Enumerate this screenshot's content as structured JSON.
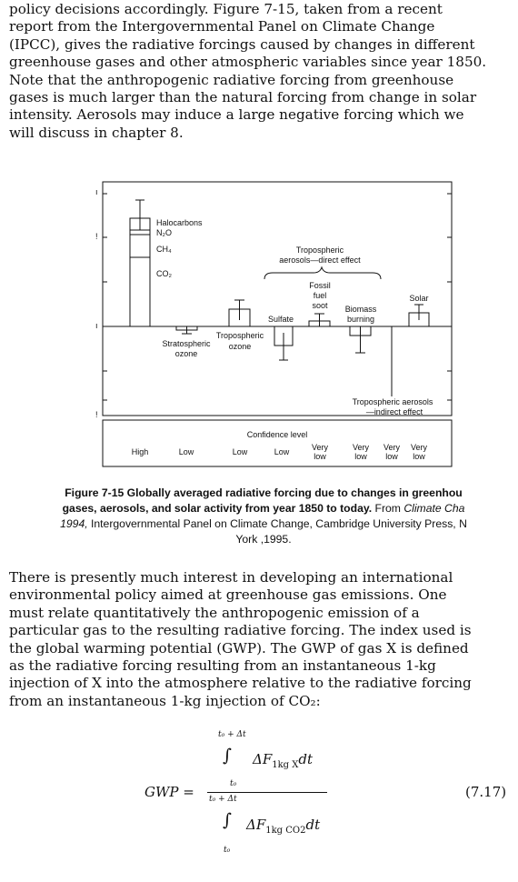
{
  "paragraph_top": [
    "policy decisions accordingly.  Figure 7-15, taken from a recent",
    "report from the Intergovernmental Panel on Climate Change",
    "(IPCC), gives the radiative forcings caused by changes in different",
    "greenhouse gases and other atmospheric variables since year 1850.",
    "Note that the anthropogenic radiative forcing from greenhouse",
    "gases is much larger than the natural forcing from change in solar",
    "intensity.  Aerosols may induce a large negative forcing which we",
    "will discuss in chapter 8."
  ],
  "figure": {
    "labels": {
      "halocarbons": "Halocarbons",
      "n2o": "N₂O",
      "ch4": "CH₄",
      "co2": "CO₂",
      "trop_direct_1": "Tropospheric",
      "trop_direct_2": "aerosols—direct effect",
      "fossil_1": "Fossil",
      "fossil_2": "fuel",
      "fossil_3": "soot",
      "sulfate": "Sulfate",
      "biomass_1": "Biomass",
      "biomass_2": "burning",
      "solar": "Solar",
      "strat_ozone_1": "Stratospheric",
      "strat_ozone_2": "ozone",
      "trop_ozone_1": "Tropospheric",
      "trop_ozone_2": "ozone",
      "trop_indirect_1": "Tropospheric aerosols",
      "trop_indirect_2": "—indirect effect",
      "confidence_level": "Confidence level"
    },
    "confidence": [
      "High",
      "Low",
      "Low",
      "Low",
      "Very low",
      "Very low",
      "Very low",
      "Very low"
    ]
  },
  "caption": {
    "bold_1": "Figure 7-15  Globally averaged radiative forcing due to changes in greenhou",
    "bold_2": "gases, aerosols, and solar activity from year 1850 to today.",
    "plain_2": " From ",
    "italic_2": "Climate Cha",
    "italic_3": "1994,",
    "plain_3": " Intergovernmental Panel on Climate Change, Cambridge University Press, N",
    "plain_4": "York ,1995."
  },
  "paragraph_bottom": [
    "There is presently much interest in developing an international",
    "environmental policy aimed at greenhouse gas emissions.  One",
    "must relate quantitatively the anthropogenic emission of a",
    "particular gas to the resulting radiative forcing.  The index used is",
    "the global warming potential (GWP).  The GWP of gas X is defined",
    "as the radiative forcing  resulting from an instantaneous 1-kg",
    "injection of X into the atmosphere relative to the radiative forcing",
    "from an instantaneous 1-kg injection of CO₂:"
  ],
  "equation": {
    "lhs": "GWP =",
    "upper_limit": "t₀ + Δt",
    "lower_limit": "t₀",
    "integral": "∫",
    "numerator": "ΔF",
    "numerator_sub": "1kg X",
    "denominator": "ΔF",
    "denominator_sub": "1kg CO2",
    "dt": "dt",
    "number": "(7.17)"
  }
}
